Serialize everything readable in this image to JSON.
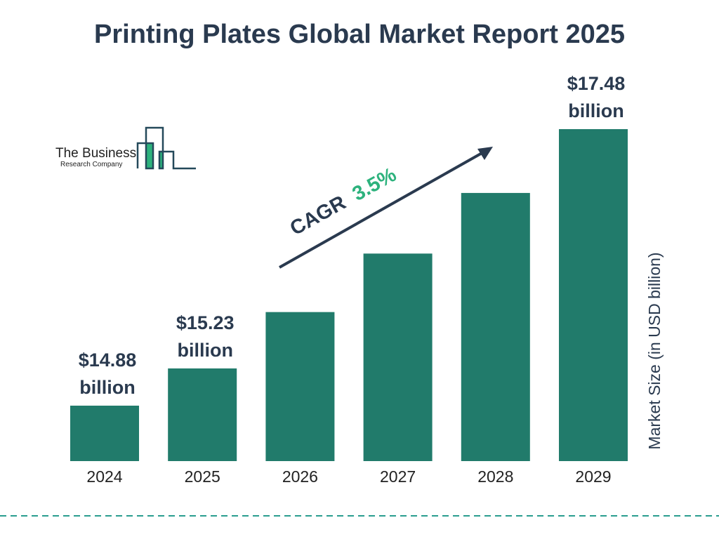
{
  "chart_data": {
    "type": "bar",
    "title": "Printing Plates Global Market Report 2025",
    "ylabel": "Market Size (in USD billion)",
    "xlabel": "",
    "categories": [
      "2024",
      "2025",
      "2026",
      "2027",
      "2028",
      "2029"
    ],
    "values": [
      14.88,
      15.23,
      15.76,
      16.31,
      16.88,
      17.48
    ],
    "data_labels": [
      {
        "index": 0,
        "value": "$14.88",
        "unit": "billion"
      },
      {
        "index": 1,
        "value": "$15.23",
        "unit": "billion"
      },
      {
        "index": 5,
        "value": "$17.48",
        "unit": "billion"
      }
    ],
    "ylim": [
      14.36,
      17.48
    ],
    "grid": false,
    "annotation": {
      "label": "CAGR",
      "value": "3.5%"
    },
    "colors": {
      "bar": "#217b6b",
      "text": "#2a3a4f",
      "cagr": "#2db27d",
      "dash": "#2a9d8f"
    }
  },
  "logo": {
    "line1": "The Business",
    "line2": "Research Company"
  }
}
